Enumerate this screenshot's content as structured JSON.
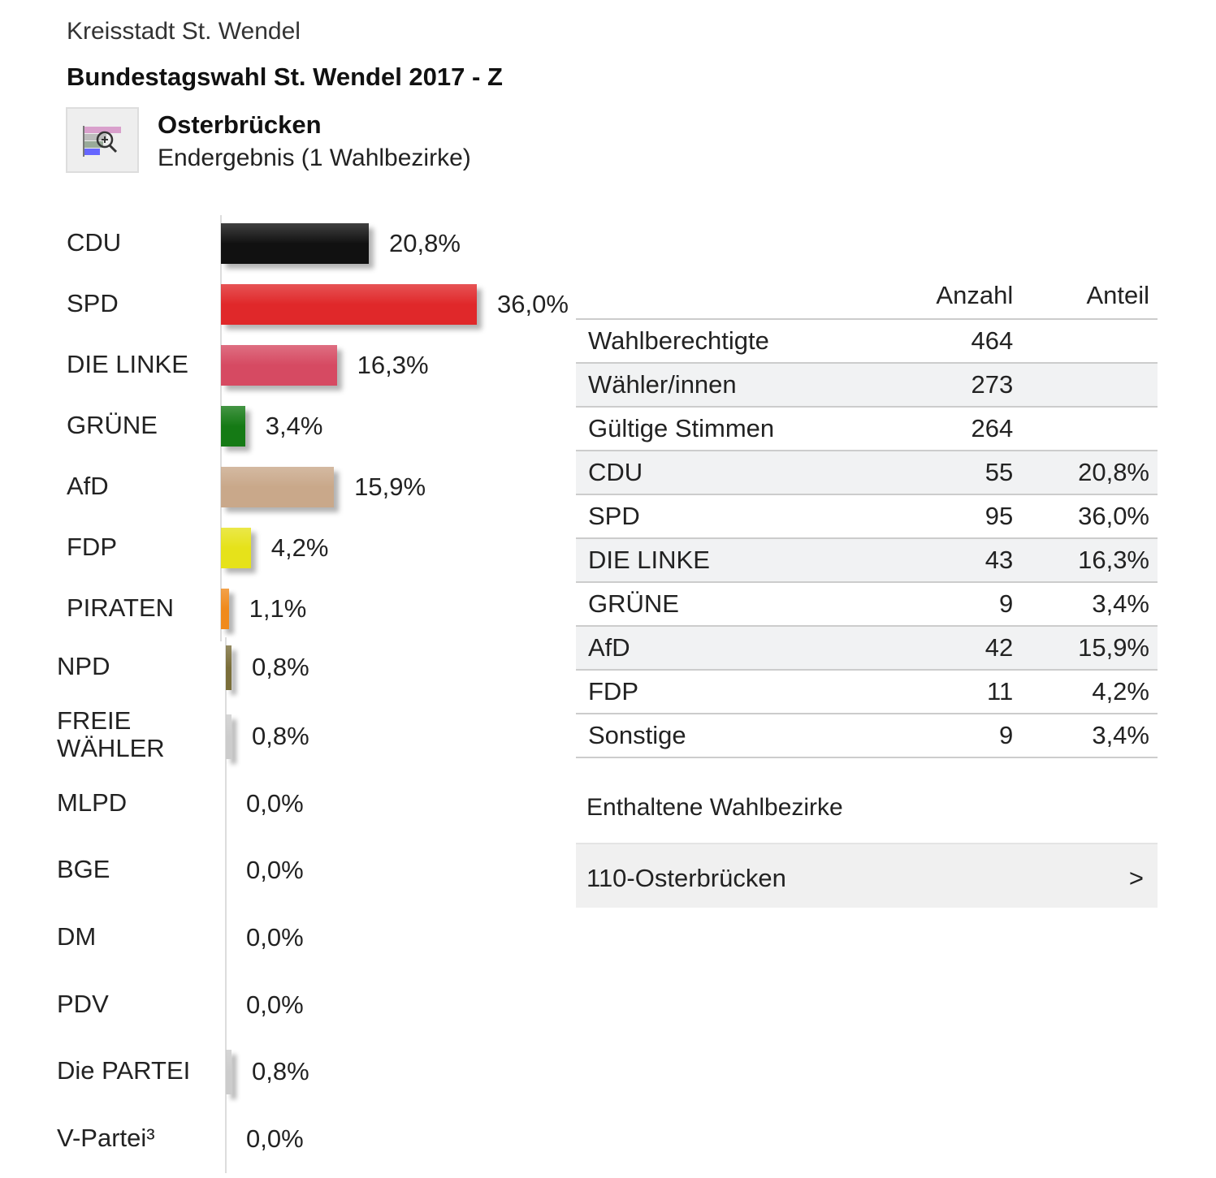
{
  "header": {
    "organization": "Kreisstadt St. Wendel",
    "title": "Bundestagswahl St. Wendel 2017 - Z",
    "area": "Osterbrücken",
    "status": "Endergebnis (1 Wahlbezirke)",
    "icon": "chart-zoom-icon"
  },
  "chart_data": {
    "type": "bar",
    "orientation": "horizontal",
    "categories": [
      "CDU",
      "SPD",
      "DIE LINKE",
      "GRÜNE",
      "AfD",
      "FDP",
      "PIRATEN",
      "NPD",
      "FREIE WÄHLER",
      "MLPD",
      "BGE",
      "DM",
      "PDV",
      "Die PARTEI",
      "V-Partei³"
    ],
    "values": [
      20.8,
      36.0,
      16.3,
      3.4,
      15.9,
      4.2,
      1.1,
      0.8,
      0.8,
      0.0,
      0.0,
      0.0,
      0.0,
      0.8,
      0.0
    ],
    "labels": [
      "20,8%",
      "36,0%",
      "16,3%",
      "3,4%",
      "15,9%",
      "4,2%",
      "1,1%",
      "0,8%",
      "0,8%",
      "0,0%",
      "0,0%",
      "0,0%",
      "0,0%",
      "0,8%",
      "0,0%"
    ],
    "colors": [
      "#111111",
      "#e0282a",
      "#d64a62",
      "#157a15",
      "#c9a88a",
      "#e6e21a",
      "#f08a1c",
      "#7a6e3a",
      "#cccccc",
      "#cccccc",
      "#cccccc",
      "#cccccc",
      "#cccccc",
      "#cccccc",
      "#cccccc"
    ],
    "unit": "%"
  },
  "table": {
    "headers": [
      "",
      "Anzahl",
      "Anteil"
    ],
    "rows": [
      [
        "Wahlberechtigte",
        "464",
        ""
      ],
      [
        "Wähler/innen",
        "273",
        ""
      ],
      [
        "Gültige Stimmen",
        "264",
        ""
      ],
      [
        "CDU",
        "55",
        "20,8%"
      ],
      [
        "SPD",
        "95",
        "36,0%"
      ],
      [
        "DIE LINKE",
        "43",
        "16,3%"
      ],
      [
        "GRÜNE",
        "9",
        "3,4%"
      ],
      [
        "AfD",
        "42",
        "15,9%"
      ],
      [
        "FDP",
        "11",
        "4,2%"
      ],
      [
        "Sonstige",
        "9",
        "3,4%"
      ]
    ]
  },
  "districts": {
    "title": "Enthaltene Wahlbezirke",
    "items": [
      {
        "label": "110-Osterbrücken",
        "arrow": ">"
      }
    ]
  }
}
